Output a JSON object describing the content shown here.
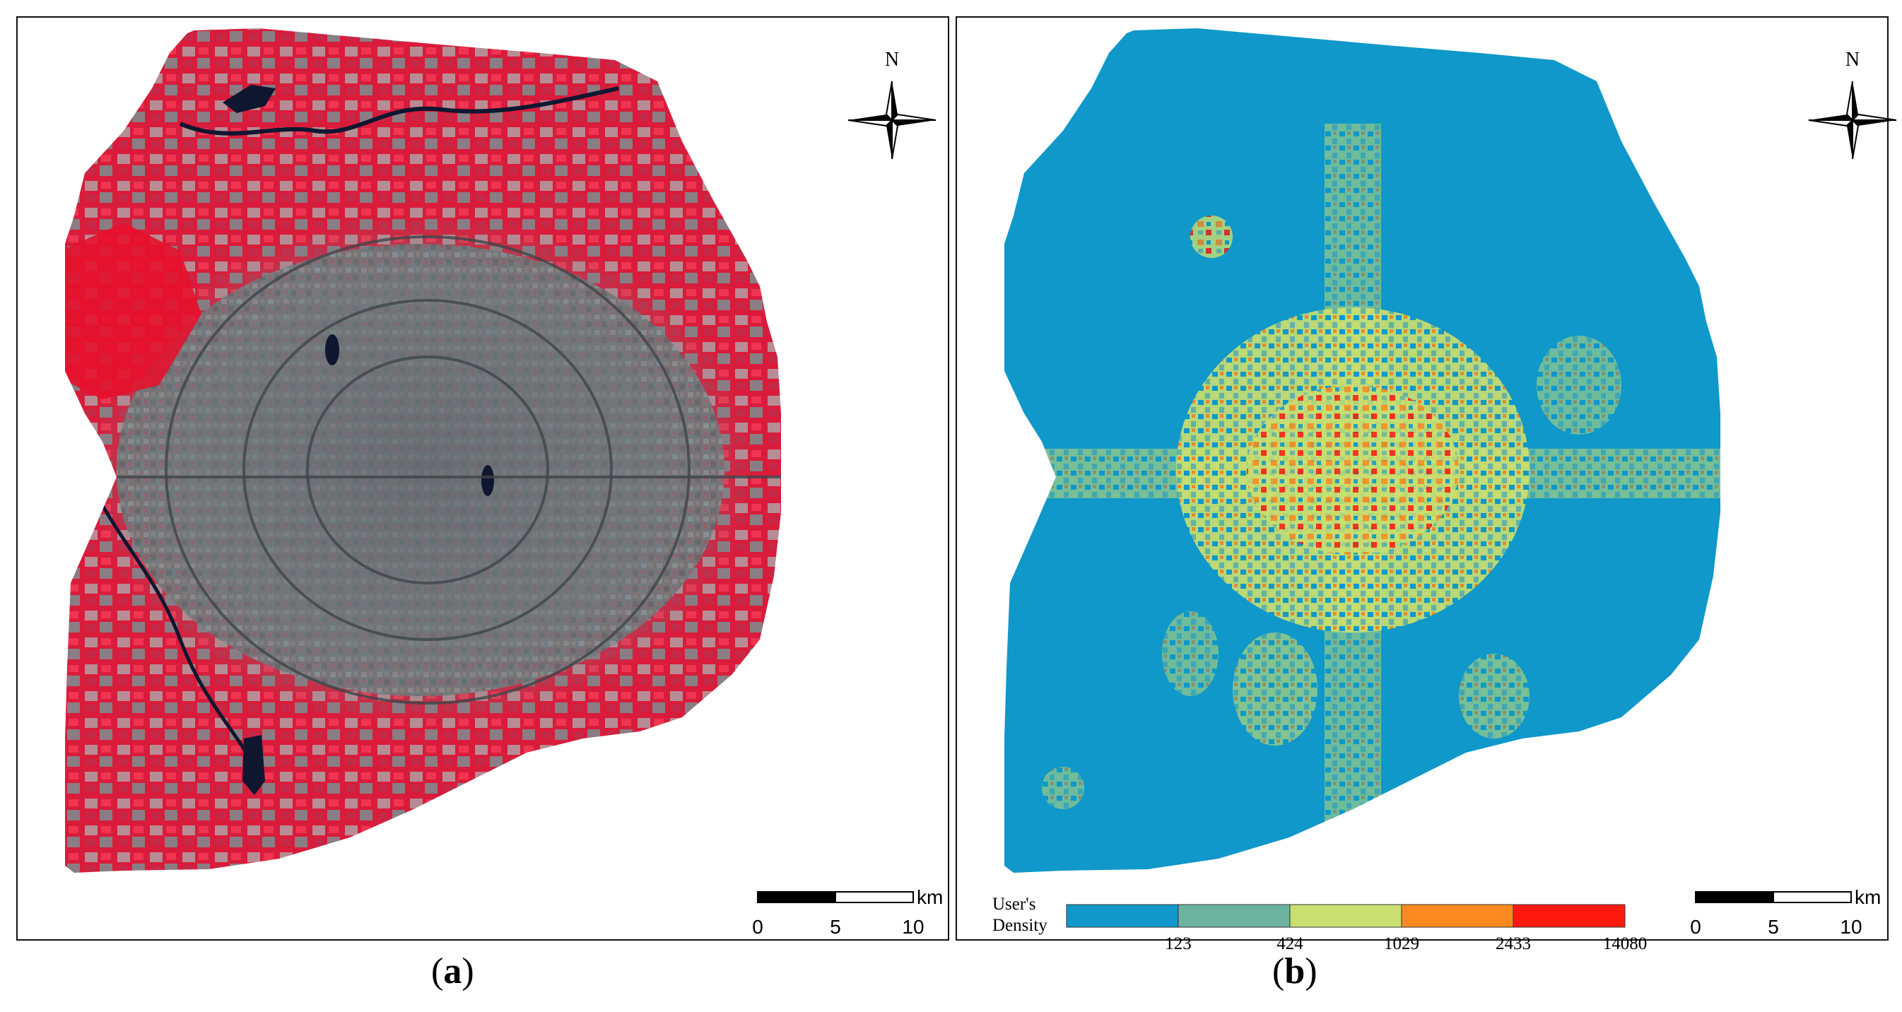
{
  "panels": [
    {
      "id": "a",
      "label_open": "(",
      "label_letter": "a",
      "label_close": ")",
      "north": "N",
      "scale": {
        "ticks": [
          "0",
          "5",
          "10"
        ],
        "unit": "km"
      }
    },
    {
      "id": "b",
      "label_open": "(",
      "label_letter": "b",
      "label_close": ")",
      "north": "N",
      "scale": {
        "ticks": [
          "0",
          "5",
          "10"
        ],
        "unit": "km"
      },
      "legend": {
        "title_line1": "User's",
        "title_line2": "Density",
        "breaks": [
          "123",
          "424",
          "1029",
          "2433",
          "14080"
        ],
        "colors": [
          "#0f98c9",
          "#6db4a0",
          "#c9df6f",
          "#fa8a20",
          "#ff1a10"
        ]
      }
    }
  ],
  "colors": {
    "vegetation": "#e0203e",
    "urban": "#6f787a",
    "water": "#0f1630",
    "map_b_background": "#0f98c9"
  }
}
